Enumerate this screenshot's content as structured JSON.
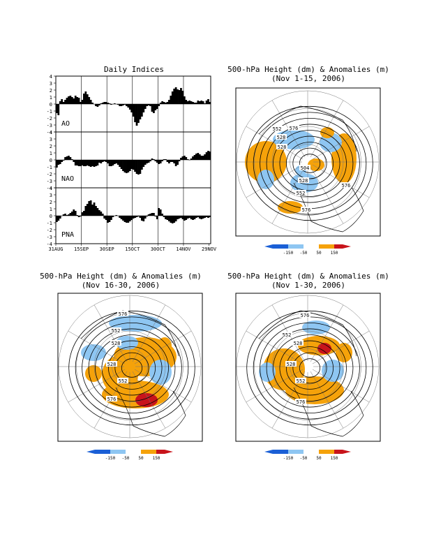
{
  "indices_panel": {
    "title": "Daily Indices",
    "y_ticks": [
      "4",
      "3",
      "2",
      "1",
      "0",
      "-1",
      "-2",
      "-3",
      "-4"
    ],
    "x_ticks": [
      "31AUG",
      "15SEP",
      "30SEP",
      "15OCT",
      "30OCT",
      "14NOV",
      "29NOV"
    ]
  },
  "maps": [
    {
      "title_line1": "500-hPa Height (dm) & Anomalies (m)",
      "title_line2": "(Nov 1-15, 2006)",
      "contour_labels": [
        "576",
        "552",
        "528",
        "528",
        "504",
        "528",
        "552",
        "576",
        "576"
      ]
    },
    {
      "title_line1": "500-hPa Height (dm) & Anomalies (m)",
      "title_line2": "(Nov 16-30, 2006)",
      "contour_labels": [
        "576",
        "552",
        "528",
        "528",
        "552",
        "576"
      ]
    },
    {
      "title_line1": "500-hPa Height (dm) & Anomalies (m)",
      "title_line2": "(Nov 1-30, 2006)",
      "contour_labels": [
        "576",
        "552",
        "528",
        "528",
        "552",
        "576"
      ]
    }
  ],
  "colorbar": {
    "labels": [
      "-150",
      "-50",
      "50",
      "150"
    ],
    "colors": [
      "#1a5fd6",
      "#8ec6f2",
      "#ffffff",
      "#f5a20a",
      "#c8141b"
    ]
  },
  "anomaly_colors": {
    "strong_neg": "#1a5fd6",
    "neg": "#8ec6f2",
    "pos": "#f5a20a",
    "strong_pos": "#c8141b"
  },
  "chart_data": [
    {
      "type": "bar",
      "name": "AO",
      "label": "AO",
      "ylim": [
        -4,
        4
      ],
      "values": [
        -1.3,
        -1.6,
        0.4,
        0.7,
        0.3,
        0.6,
        0.9,
        1.1,
        1.2,
        1.0,
        0.8,
        1.2,
        1.0,
        0.9,
        0.3,
        0.6,
        1.5,
        1.8,
        1.4,
        1.0,
        0.6,
        0.2,
        0.0,
        -0.3,
        -0.4,
        -0.2,
        0.1,
        0.2,
        0.3,
        0.3,
        0.2,
        0.1,
        -0.1,
        0.0,
        0.1,
        0.0,
        -0.1,
        -0.3,
        -0.3,
        -0.2,
        -0.1,
        -0.3,
        -0.5,
        -0.8,
        -1.2,
        -1.8,
        -2.6,
        -3.1,
        -2.7,
        -2.2,
        -1.8,
        -1.2,
        -0.7,
        -0.3,
        -0.2,
        -0.3,
        -1.1,
        -1.3,
        -0.9,
        -0.7,
        -0.3,
        0.2,
        0.4,
        0.3,
        0.2,
        0.3,
        0.6,
        1.2,
        1.8,
        2.2,
        2.4,
        2.1,
        2.0,
        2.3,
        1.9,
        1.1,
        0.6,
        0.4,
        0.5,
        0.4,
        0.3,
        0.2,
        0.2,
        0.5,
        0.4,
        0.5,
        0.4,
        0.1,
        0.5,
        0.7,
        0.3
      ]
    },
    {
      "type": "bar",
      "name": "NAO",
      "label": "NAO",
      "ylim": [
        -4,
        4
      ],
      "values": [
        -1.1,
        -0.7,
        -0.6,
        -0.3,
        -0.1,
        0.4,
        0.5,
        0.6,
        0.4,
        0.1,
        -0.3,
        -0.8,
        -0.8,
        -0.9,
        -0.9,
        -0.8,
        -0.9,
        -0.9,
        -0.8,
        -0.9,
        -1.0,
        -0.9,
        -1.0,
        -0.9,
        -0.8,
        -0.4,
        -0.5,
        -0.3,
        -0.2,
        -0.3,
        -0.5,
        -0.9,
        -0.9,
        -0.8,
        -0.6,
        -0.5,
        -0.7,
        -1.0,
        -1.3,
        -1.6,
        -1.8,
        -1.9,
        -1.8,
        -1.6,
        -1.3,
        -1.4,
        -1.7,
        -2.0,
        -2.1,
        -2.0,
        -1.4,
        -1.0,
        -0.7,
        -0.5,
        -0.4,
        -0.2,
        0.2,
        0.1,
        -0.2,
        -0.4,
        -0.6,
        -0.5,
        -0.2,
        0.1,
        0.1,
        -0.3,
        -0.5,
        -0.3,
        -0.3,
        -0.5,
        -0.9,
        -0.7,
        -0.2,
        0.3,
        0.5,
        0.6,
        0.4,
        0.1,
        0.0,
        0.2,
        0.5,
        0.7,
        0.9,
        1.0,
        0.8,
        0.6,
        0.6,
        0.8,
        1.1,
        1.3,
        1.2
      ]
    },
    {
      "type": "bar",
      "name": "PNA",
      "label": "PNA",
      "ylim": [
        -4,
        4
      ],
      "values": [
        -0.9,
        -0.7,
        -0.4,
        0.0,
        0.2,
        0.3,
        0.1,
        0.2,
        0.4,
        0.6,
        0.9,
        0.7,
        0.1,
        -0.2,
        -0.1,
        0.5,
        0.7,
        1.4,
        1.7,
        2.1,
        2.2,
        1.6,
        1.9,
        1.4,
        1.1,
        0.8,
        0.6,
        0.3,
        -0.4,
        -0.6,
        -1.0,
        -0.9,
        -0.6,
        -0.2,
        0.0,
        0.1,
        0.0,
        -0.3,
        -0.5,
        -0.7,
        -0.9,
        -1.0,
        -1.0,
        -0.8,
        -0.6,
        -0.4,
        -0.3,
        -0.2,
        -0.1,
        -0.3,
        -0.7,
        -0.8,
        -0.4,
        -0.1,
        0.2,
        0.3,
        0.4,
        0.4,
        -0.1,
        -0.5,
        1.1,
        0.9,
        0.3,
        -0.2,
        -0.5,
        -0.6,
        -0.8,
        -1.0,
        -1.1,
        -1.0,
        -0.8,
        -0.5,
        -0.4,
        -0.3,
        -0.5,
        -0.7,
        -0.6,
        -0.4,
        -0.3,
        -0.5,
        -0.6,
        -0.5,
        -0.3,
        -0.2,
        -0.4,
        -0.5,
        -0.4,
        -0.3,
        -0.2,
        -0.3,
        -0.2
      ]
    }
  ]
}
